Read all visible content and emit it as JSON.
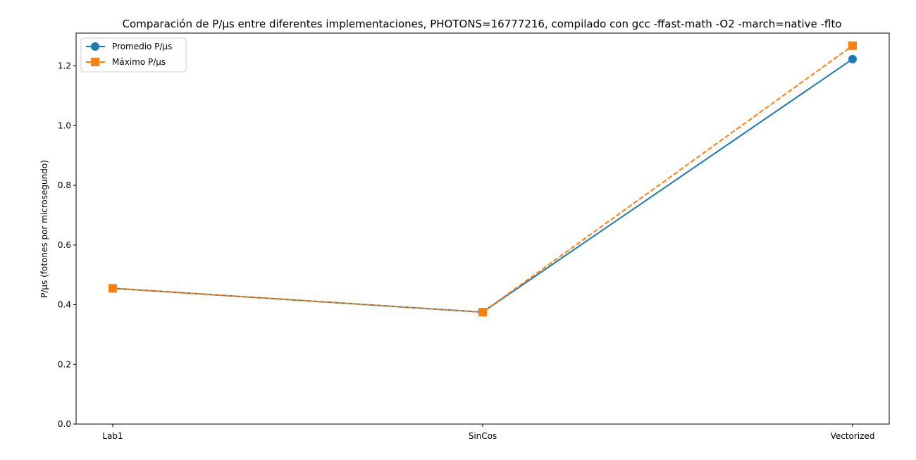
{
  "chart_data": {
    "type": "line",
    "title": "Comparación de P/μs entre diferentes implementaciones, PHOTONS=16777216, compilado con gcc -ffast-math -O2 -march=native -flto",
    "xlabel": "",
    "ylabel": "P/μs (fotones por microsegundo)",
    "categories": [
      "Lab1",
      "SinCos",
      "Vectorized"
    ],
    "ylim": [
      0,
      1.31
    ],
    "yticks": [
      "0.0",
      "0.2",
      "0.4",
      "0.6",
      "0.8",
      "1.0",
      "1.2"
    ],
    "grid": false,
    "legend_position": "top-left",
    "series": [
      {
        "name": "Promedio P/μs",
        "values": [
          0.455,
          0.375,
          1.223
        ],
        "color": "#1f77b4",
        "marker": "circle",
        "linestyle": "solid"
      },
      {
        "name": "Máximo P/μs",
        "values": [
          0.455,
          0.375,
          1.268
        ],
        "color": "#ff7f0e",
        "marker": "square",
        "linestyle": "dashed"
      }
    ]
  }
}
